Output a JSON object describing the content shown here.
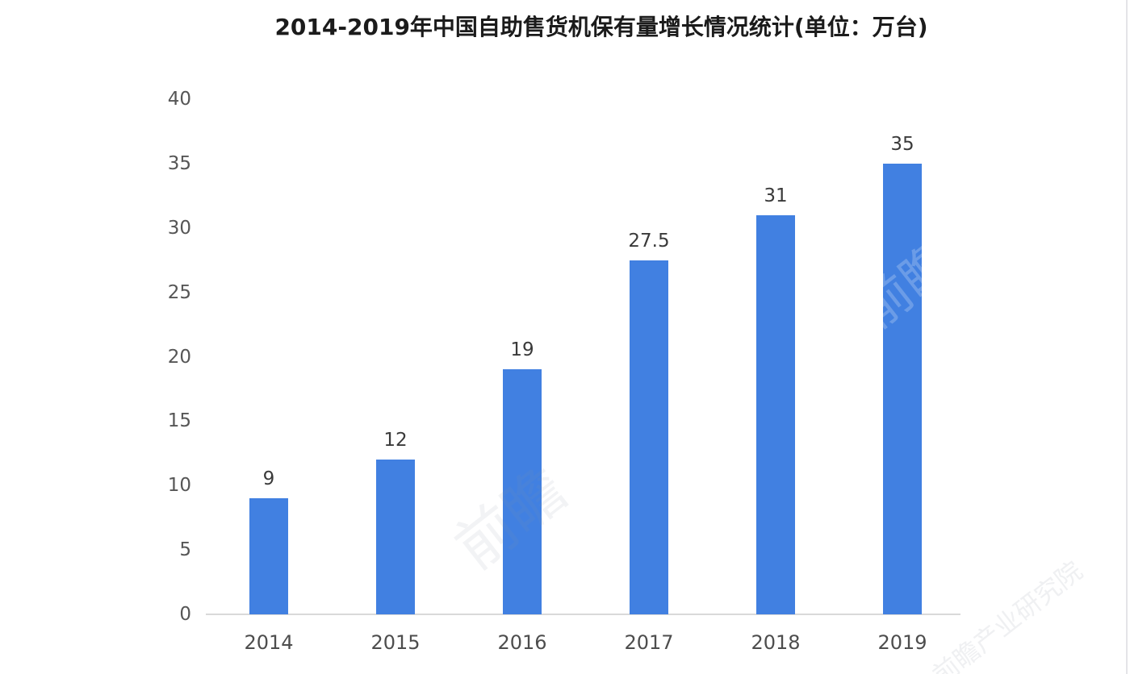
{
  "title": "2014-2019年中国自助售货机保有量增长情况统计(单位：万台)",
  "chart_data": {
    "type": "bar",
    "title": "2014-2019年中国自助售货机保有量增长情况统计(单位：万台)",
    "categories": [
      "2014",
      "2015",
      "2016",
      "2017",
      "2018",
      "2019"
    ],
    "values": [
      9,
      12,
      19,
      27.5,
      31,
      35
    ],
    "value_labels": [
      "9",
      "12",
      "19",
      "27.5",
      "31",
      "35"
    ],
    "xlabel": "",
    "ylabel": "",
    "unit": "万台",
    "ylim": [
      0,
      40
    ],
    "yticks": [
      0,
      5,
      10,
      15,
      20,
      25,
      30,
      35,
      40
    ],
    "bar_color": "#4180e1",
    "axis_line_color": "#d9d9d9",
    "grid": false,
    "legend": false
  },
  "watermarks": [
    {
      "text": "前瞻"
    },
    {
      "text": "前瞻"
    },
    {
      "text": "前瞻产业研究院"
    }
  ]
}
